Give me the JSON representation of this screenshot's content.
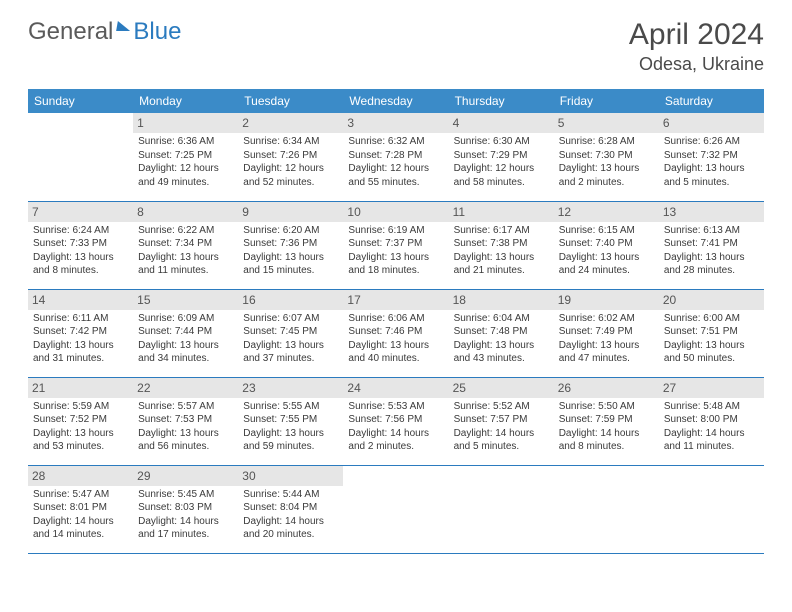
{
  "logo": {
    "part1": "General",
    "part2": "Blue"
  },
  "title": "April 2024",
  "location": "Odesa, Ukraine",
  "colors": {
    "header_bg": "#3b8bc8",
    "header_text": "#ffffff",
    "daynum_bg": "#e6e6e6",
    "border": "#2b7bbf",
    "text": "#3a3a3a",
    "logo_gray": "#5a5a5a",
    "logo_blue": "#2b7bbf"
  },
  "fonts": {
    "title_size_pt": 30,
    "location_size_pt": 18,
    "weekday_size_pt": 12,
    "daynum_size_pt": 12,
    "body_size_pt": 10
  },
  "weekdays": [
    "Sunday",
    "Monday",
    "Tuesday",
    "Wednesday",
    "Thursday",
    "Friday",
    "Saturday"
  ],
  "weeks": [
    [
      null,
      {
        "n": "1",
        "sr": "Sunrise: 6:36 AM",
        "ss": "Sunset: 7:25 PM",
        "d1": "Daylight: 12 hours",
        "d2": "and 49 minutes."
      },
      {
        "n": "2",
        "sr": "Sunrise: 6:34 AM",
        "ss": "Sunset: 7:26 PM",
        "d1": "Daylight: 12 hours",
        "d2": "and 52 minutes."
      },
      {
        "n": "3",
        "sr": "Sunrise: 6:32 AM",
        "ss": "Sunset: 7:28 PM",
        "d1": "Daylight: 12 hours",
        "d2": "and 55 minutes."
      },
      {
        "n": "4",
        "sr": "Sunrise: 6:30 AM",
        "ss": "Sunset: 7:29 PM",
        "d1": "Daylight: 12 hours",
        "d2": "and 58 minutes."
      },
      {
        "n": "5",
        "sr": "Sunrise: 6:28 AM",
        "ss": "Sunset: 7:30 PM",
        "d1": "Daylight: 13 hours",
        "d2": "and 2 minutes."
      },
      {
        "n": "6",
        "sr": "Sunrise: 6:26 AM",
        "ss": "Sunset: 7:32 PM",
        "d1": "Daylight: 13 hours",
        "d2": "and 5 minutes."
      }
    ],
    [
      {
        "n": "7",
        "sr": "Sunrise: 6:24 AM",
        "ss": "Sunset: 7:33 PM",
        "d1": "Daylight: 13 hours",
        "d2": "and 8 minutes."
      },
      {
        "n": "8",
        "sr": "Sunrise: 6:22 AM",
        "ss": "Sunset: 7:34 PM",
        "d1": "Daylight: 13 hours",
        "d2": "and 11 minutes."
      },
      {
        "n": "9",
        "sr": "Sunrise: 6:20 AM",
        "ss": "Sunset: 7:36 PM",
        "d1": "Daylight: 13 hours",
        "d2": "and 15 minutes."
      },
      {
        "n": "10",
        "sr": "Sunrise: 6:19 AM",
        "ss": "Sunset: 7:37 PM",
        "d1": "Daylight: 13 hours",
        "d2": "and 18 minutes."
      },
      {
        "n": "11",
        "sr": "Sunrise: 6:17 AM",
        "ss": "Sunset: 7:38 PM",
        "d1": "Daylight: 13 hours",
        "d2": "and 21 minutes."
      },
      {
        "n": "12",
        "sr": "Sunrise: 6:15 AM",
        "ss": "Sunset: 7:40 PM",
        "d1": "Daylight: 13 hours",
        "d2": "and 24 minutes."
      },
      {
        "n": "13",
        "sr": "Sunrise: 6:13 AM",
        "ss": "Sunset: 7:41 PM",
        "d1": "Daylight: 13 hours",
        "d2": "and 28 minutes."
      }
    ],
    [
      {
        "n": "14",
        "sr": "Sunrise: 6:11 AM",
        "ss": "Sunset: 7:42 PM",
        "d1": "Daylight: 13 hours",
        "d2": "and 31 minutes."
      },
      {
        "n": "15",
        "sr": "Sunrise: 6:09 AM",
        "ss": "Sunset: 7:44 PM",
        "d1": "Daylight: 13 hours",
        "d2": "and 34 minutes."
      },
      {
        "n": "16",
        "sr": "Sunrise: 6:07 AM",
        "ss": "Sunset: 7:45 PM",
        "d1": "Daylight: 13 hours",
        "d2": "and 37 minutes."
      },
      {
        "n": "17",
        "sr": "Sunrise: 6:06 AM",
        "ss": "Sunset: 7:46 PM",
        "d1": "Daylight: 13 hours",
        "d2": "and 40 minutes."
      },
      {
        "n": "18",
        "sr": "Sunrise: 6:04 AM",
        "ss": "Sunset: 7:48 PM",
        "d1": "Daylight: 13 hours",
        "d2": "and 43 minutes."
      },
      {
        "n": "19",
        "sr": "Sunrise: 6:02 AM",
        "ss": "Sunset: 7:49 PM",
        "d1": "Daylight: 13 hours",
        "d2": "and 47 minutes."
      },
      {
        "n": "20",
        "sr": "Sunrise: 6:00 AM",
        "ss": "Sunset: 7:51 PM",
        "d1": "Daylight: 13 hours",
        "d2": "and 50 minutes."
      }
    ],
    [
      {
        "n": "21",
        "sr": "Sunrise: 5:59 AM",
        "ss": "Sunset: 7:52 PM",
        "d1": "Daylight: 13 hours",
        "d2": "and 53 minutes."
      },
      {
        "n": "22",
        "sr": "Sunrise: 5:57 AM",
        "ss": "Sunset: 7:53 PM",
        "d1": "Daylight: 13 hours",
        "d2": "and 56 minutes."
      },
      {
        "n": "23",
        "sr": "Sunrise: 5:55 AM",
        "ss": "Sunset: 7:55 PM",
        "d1": "Daylight: 13 hours",
        "d2": "and 59 minutes."
      },
      {
        "n": "24",
        "sr": "Sunrise: 5:53 AM",
        "ss": "Sunset: 7:56 PM",
        "d1": "Daylight: 14 hours",
        "d2": "and 2 minutes."
      },
      {
        "n": "25",
        "sr": "Sunrise: 5:52 AM",
        "ss": "Sunset: 7:57 PM",
        "d1": "Daylight: 14 hours",
        "d2": "and 5 minutes."
      },
      {
        "n": "26",
        "sr": "Sunrise: 5:50 AM",
        "ss": "Sunset: 7:59 PM",
        "d1": "Daylight: 14 hours",
        "d2": "and 8 minutes."
      },
      {
        "n": "27",
        "sr": "Sunrise: 5:48 AM",
        "ss": "Sunset: 8:00 PM",
        "d1": "Daylight: 14 hours",
        "d2": "and 11 minutes."
      }
    ],
    [
      {
        "n": "28",
        "sr": "Sunrise: 5:47 AM",
        "ss": "Sunset: 8:01 PM",
        "d1": "Daylight: 14 hours",
        "d2": "and 14 minutes."
      },
      {
        "n": "29",
        "sr": "Sunrise: 5:45 AM",
        "ss": "Sunset: 8:03 PM",
        "d1": "Daylight: 14 hours",
        "d2": "and 17 minutes."
      },
      {
        "n": "30",
        "sr": "Sunrise: 5:44 AM",
        "ss": "Sunset: 8:04 PM",
        "d1": "Daylight: 14 hours",
        "d2": "and 20 minutes."
      },
      null,
      null,
      null,
      null
    ]
  ]
}
